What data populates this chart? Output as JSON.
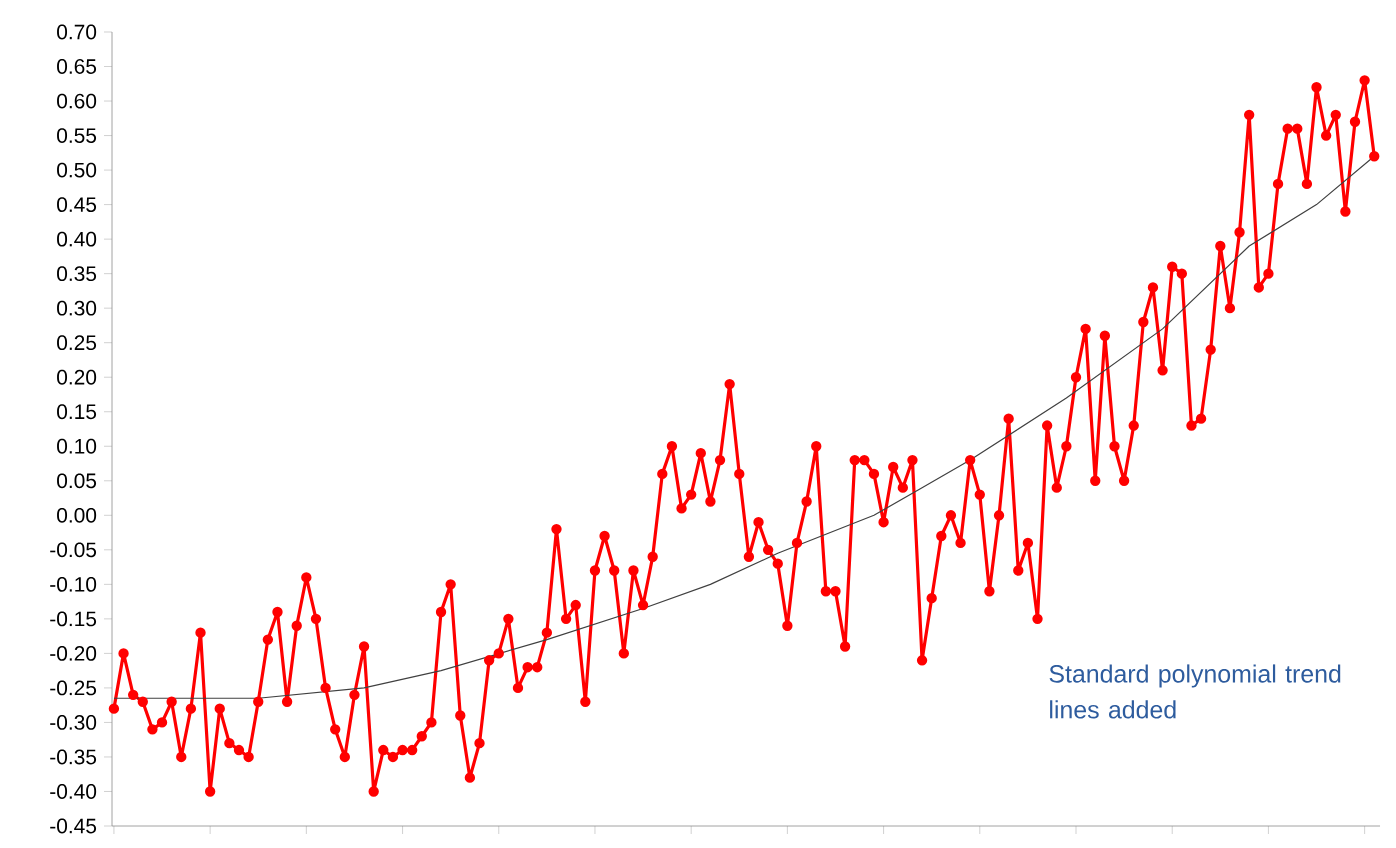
{
  "chart_data": {
    "type": "line",
    "categories": [
      null,
      null,
      null,
      null,
      null,
      null,
      null,
      null,
      null,
      null,
      null,
      null,
      null,
      null,
      null,
      null,
      null,
      null,
      null,
      null,
      null,
      null,
      null,
      null,
      null,
      null,
      null,
      null,
      null,
      null,
      null,
      null,
      null,
      null,
      null,
      null,
      null,
      null,
      null,
      null,
      null,
      null,
      null,
      null,
      null,
      null,
      null,
      null,
      null,
      null,
      null,
      null,
      null,
      null,
      null,
      null,
      null,
      null,
      null,
      null,
      null,
      null,
      null,
      null,
      null,
      null,
      null,
      null,
      null,
      null,
      null,
      null,
      null,
      null,
      null,
      null,
      null,
      null,
      null,
      null,
      null,
      null,
      null,
      null,
      null,
      null,
      null,
      null,
      null,
      null,
      null,
      null,
      null,
      null,
      null,
      null,
      null,
      null,
      null,
      null,
      null,
      null,
      null,
      null,
      null,
      null,
      null,
      null,
      null,
      null,
      null,
      null,
      null,
      null,
      null,
      null,
      null,
      null,
      null,
      null,
      null,
      null,
      null,
      null,
      null,
      null,
      null,
      null,
      null,
      null,
      null,
      null
    ],
    "series": [
      {
        "color": "#ff0000",
        "marker": "circle",
        "line_style": "solid",
        "values": [
          -0.28,
          -0.2,
          -0.26,
          -0.27,
          -0.31,
          -0.3,
          -0.27,
          -0.35,
          -0.28,
          -0.17,
          -0.4,
          -0.28,
          -0.33,
          -0.34,
          -0.35,
          -0.27,
          -0.18,
          -0.14,
          -0.27,
          -0.16,
          -0.09,
          -0.15,
          -0.25,
          -0.31,
          -0.35,
          -0.26,
          -0.19,
          -0.4,
          -0.34,
          -0.35,
          -0.34,
          -0.34,
          -0.32,
          -0.3,
          -0.14,
          -0.1,
          -0.29,
          -0.38,
          -0.33,
          -0.21,
          -0.2,
          -0.15,
          -0.25,
          -0.22,
          -0.22,
          -0.17,
          -0.02,
          -0.15,
          -0.13,
          -0.27,
          -0.08,
          -0.03,
          -0.08,
          -0.2,
          -0.08,
          -0.13,
          -0.06,
          0.06,
          0.1,
          0.01,
          0.03,
          0.09,
          0.02,
          0.08,
          0.19,
          0.06,
          -0.06,
          -0.01,
          -0.05,
          -0.07,
          -0.16,
          -0.04,
          0.02,
          0.1,
          -0.11,
          -0.11,
          -0.19,
          0.08,
          0.08,
          0.06,
          -0.01,
          0.07,
          0.04,
          0.08,
          -0.21,
          -0.12,
          -0.03,
          0.0,
          -0.04,
          0.08,
          0.03,
          -0.11,
          0.0,
          0.14,
          -0.08,
          -0.04,
          -0.15,
          0.13,
          0.04,
          0.1,
          0.2,
          0.27,
          0.05,
          0.26,
          0.1,
          0.05,
          0.13,
          0.28,
          0.33,
          0.21,
          0.36,
          0.35,
          0.13,
          0.14,
          0.24,
          0.39,
          0.3,
          0.41,
          0.58,
          0.33,
          0.35,
          0.48,
          0.56,
          0.56,
          0.48,
          0.62,
          0.55,
          0.58,
          0.44,
          0.57,
          0.63,
          0.52
        ]
      },
      {
        "color": "#404040",
        "marker": "none",
        "line_style": "solid",
        "values": [
          -0.265,
          null,
          null,
          null,
          null,
          null,
          null,
          null,
          null,
          null,
          null,
          null,
          null,
          null,
          null,
          -0.265,
          null,
          null,
          null,
          null,
          null,
          null,
          null,
          null,
          null,
          null,
          -0.25,
          null,
          null,
          null,
          null,
          null,
          null,
          null,
          -0.225,
          null,
          null,
          null,
          null,
          null,
          null,
          null,
          null,
          null,
          null,
          -0.18,
          null,
          null,
          null,
          null,
          null,
          null,
          null,
          null,
          null,
          -0.135,
          null,
          null,
          null,
          null,
          null,
          null,
          -0.1,
          null,
          null,
          null,
          null,
          null,
          null,
          -0.055,
          null,
          null,
          null,
          null,
          null,
          null,
          null,
          null,
          null,
          0.0,
          null,
          null,
          null,
          null,
          0.04,
          null,
          null,
          null,
          null,
          0.08,
          null,
          null,
          null,
          null,
          null,
          null,
          null,
          null,
          null,
          0.17,
          null,
          null,
          null,
          null,
          null,
          null,
          null,
          null,
          null,
          0.27,
          null,
          null,
          null,
          null,
          null,
          null,
          null,
          null,
          0.39,
          null,
          null,
          null,
          null,
          null,
          null,
          0.45,
          null,
          null,
          null,
          null,
          null,
          0.52
        ]
      }
    ],
    "ylim": [
      -0.45,
      0.7
    ],
    "yticks": [
      {
        "value": -0.45,
        "label": "-0.45"
      },
      {
        "value": -0.4,
        "label": "-0.40"
      },
      {
        "value": -0.35,
        "label": "-0.35"
      },
      {
        "value": -0.3,
        "label": "-0.30"
      },
      {
        "value": -0.25,
        "label": "-0.25"
      },
      {
        "value": -0.2,
        "label": "-0.20"
      },
      {
        "value": -0.15,
        "label": "-0.15"
      },
      {
        "value": -0.1,
        "label": "-0.10"
      },
      {
        "value": -0.05,
        "label": "-0.05"
      },
      {
        "value": 0.0,
        "label": "0.00"
      },
      {
        "value": 0.05,
        "label": "0.05"
      },
      {
        "value": 0.1,
        "label": "0.10"
      },
      {
        "value": 0.15,
        "label": "0.15"
      },
      {
        "value": 0.2,
        "label": "0.20"
      },
      {
        "value": 0.25,
        "label": "0.25"
      },
      {
        "value": 0.3,
        "label": "0.30"
      },
      {
        "value": 0.35,
        "label": "0.35"
      },
      {
        "value": 0.4,
        "label": "0.40"
      },
      {
        "value": 0.45,
        "label": "0.45"
      },
      {
        "value": 0.5,
        "label": "0.50"
      },
      {
        "value": 0.55,
        "label": "0.55"
      },
      {
        "value": 0.6,
        "label": "0.60"
      },
      {
        "value": 0.65,
        "label": "0.65"
      },
      {
        "value": 0.7,
        "label": "0.70"
      }
    ],
    "tick_labels": "y",
    "grid": false,
    "legend": false,
    "annotations": [
      "Standard polynomial trend lines added"
    ]
  }
}
